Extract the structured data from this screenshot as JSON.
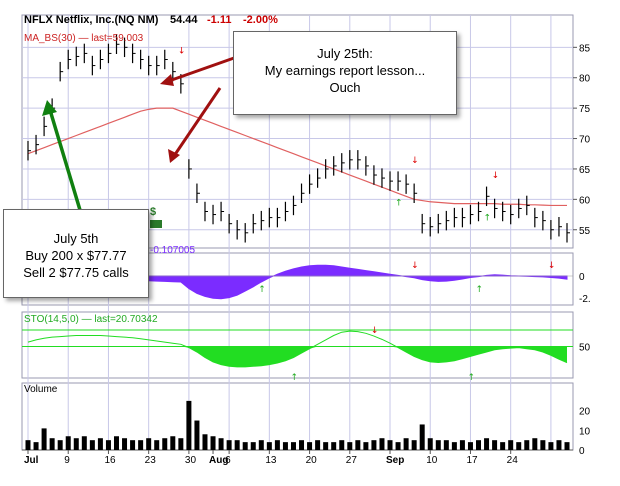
{
  "header": {
    "ticker": "NFLX Netflix, Inc.(NQ NM)",
    "price": "54.44",
    "change": "-1.11",
    "change_pct": "-2.00%"
  },
  "indicators": {
    "ma": "MA_BS(30) — last=59.003",
    "mf_value": "-0.107005",
    "sto": "STO(14,5,0) — last=20.70342",
    "volume": "Volume"
  },
  "callouts": {
    "july25": [
      "July 25th:",
      "My earnings report lesson...",
      "Ouch"
    ],
    "july5": [
      "July 5th",
      "Buy 200 x $77.77",
      "Sell 2 $77.75 calls"
    ]
  },
  "axes": {
    "price_ticks": [
      "85",
      "80",
      "75",
      "70",
      "65",
      "60",
      "55"
    ],
    "mf_ticks": [
      "0",
      "-2."
    ],
    "sto_ticks": [
      "50"
    ],
    "volume_ticks": [
      "20",
      "10",
      "0"
    ],
    "x_labels": [
      "Jul",
      "9",
      "16",
      "23",
      "30",
      "Aug",
      "6",
      "13",
      "20",
      "27",
      "Sep",
      "10",
      "17",
      "24"
    ]
  },
  "colors": {
    "price_bar": "#000000",
    "ma": "#e06060",
    "mf": "#7b2cff",
    "sto": "#22dd22",
    "volume": "#000000",
    "arrow_red": "#a01010",
    "arrow_green": "#108010",
    "grid": "#c8c8e8"
  },
  "chart_data": {
    "type": "ohlc",
    "ohlc_close": [
      68,
      69,
      72,
      75,
      81,
      83,
      83.5,
      84,
      82,
      83,
      84,
      85.5,
      85,
      84,
      83,
      82,
      82,
      83,
      81,
      79,
      65,
      61,
      58,
      57.5,
      58,
      56,
      55,
      54.5,
      56,
      56.5,
      57,
      57,
      58,
      59,
      61,
      62.5,
      63.5,
      65,
      65.5,
      66,
      66.5,
      66.5,
      65.5,
      64,
      63.5,
      63,
      63,
      62.5,
      61,
      56,
      55.5,
      56,
      56.5,
      57,
      57,
      57.5,
      58,
      60.5,
      58.5,
      58,
      57.5,
      58.5,
      59,
      57,
      56.5,
      55,
      55.5,
      54.5
    ],
    "ma_30": [
      67.5,
      68,
      68.5,
      69,
      69.5,
      70,
      70.5,
      71,
      71.5,
      72,
      72.5,
      73,
      73.5,
      74,
      74.5,
      74.8,
      75,
      75,
      75,
      74.5,
      74,
      73.5,
      73,
      72.5,
      72,
      71.5,
      71,
      70.5,
      70,
      69.5,
      69,
      68.5,
      68,
      67.5,
      67,
      66.5,
      66,
      65.5,
      65,
      64.5,
      64,
      63.5,
      63,
      62.5,
      62,
      61.5,
      61,
      60.5,
      60,
      59.8,
      59.6,
      59.5,
      59.4,
      59.3,
      59.3,
      59.3,
      59.3,
      59.3,
      59.3,
      59.2,
      59.2,
      59.2,
      59.1,
      59.1,
      59.05,
      59.0,
      59.0,
      59.003
    ],
    "mf": [
      -0.01,
      -0.02,
      -0.03,
      -0.04,
      -0.05,
      -0.06,
      -0.07,
      -0.08,
      -0.09,
      -0.1,
      -0.11,
      -0.12,
      -0.13,
      -0.14,
      -0.15,
      -0.16,
      -0.17,
      -0.18,
      -0.19,
      -0.2,
      -0.42,
      -0.58,
      -0.68,
      -0.74,
      -0.76,
      -0.72,
      -0.64,
      -0.5,
      -0.36,
      -0.2,
      -0.06,
      0.06,
      0.16,
      0.24,
      0.3,
      0.34,
      0.36,
      0.36,
      0.34,
      0.3,
      0.26,
      0.22,
      0.18,
      0.14,
      0.1,
      0.06,
      0.02,
      -0.02,
      -0.06,
      -0.12,
      -0.16,
      -0.18,
      -0.17,
      -0.14,
      -0.1,
      -0.05,
      -0.02,
      0.02,
      0.04,
      0.03,
      0.01,
      0.0,
      -0.01,
      -0.02,
      -0.03,
      -0.05,
      -0.07,
      -0.107005
    ],
    "sto": [
      58,
      62,
      65,
      67,
      68,
      69,
      70,
      70,
      70,
      70,
      69,
      68,
      67,
      66,
      64,
      62,
      60,
      58,
      56,
      54,
      48,
      40,
      30,
      22,
      17,
      14,
      13,
      13,
      14,
      15,
      17,
      20,
      24,
      30,
      38,
      46,
      54,
      62,
      70,
      76,
      78,
      77,
      74,
      69,
      63,
      56,
      48,
      40,
      32,
      26,
      22,
      21,
      22,
      24,
      28,
      32,
      36,
      40,
      44,
      46,
      47,
      48,
      46,
      44,
      40,
      34,
      27,
      20.70342
    ],
    "volume": [
      5,
      4,
      11,
      6,
      5,
      7,
      6,
      7,
      5,
      6,
      5,
      7,
      6,
      5,
      5,
      6,
      5,
      6,
      7,
      6,
      25,
      15,
      8,
      7,
      6,
      5,
      5,
      4,
      4,
      5,
      4,
      5,
      4,
      4,
      5,
      4,
      5,
      4,
      4,
      5,
      4,
      5,
      4,
      5,
      6,
      5,
      4,
      6,
      5,
      13,
      6,
      5,
      5,
      4,
      5,
      4,
      5,
      6,
      5,
      4,
      5,
      4,
      5,
      6,
      5,
      4,
      5,
      4
    ],
    "price_ylim": [
      52,
      89
    ],
    "volume_ylim": [
      0,
      28
    ],
    "sto_lines": [
      80,
      50
    ]
  }
}
